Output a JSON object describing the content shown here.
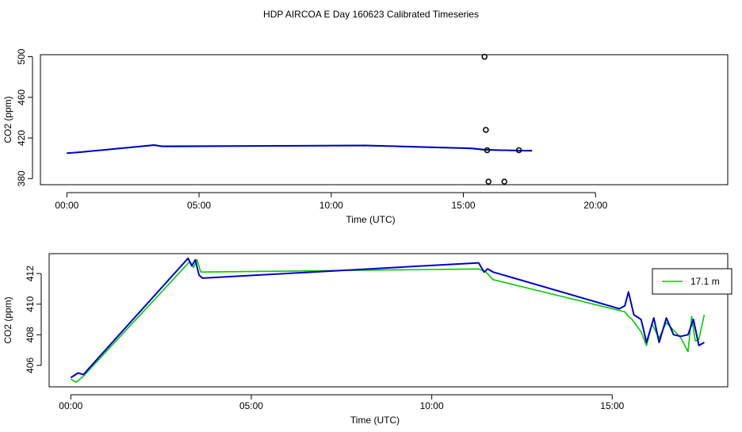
{
  "title": "HDP AIRCOA E  Day 160623  Calibrated Timeseries",
  "colors": {
    "green": "#00cc00",
    "blue": "#0000cc",
    "axis": "#000000",
    "background": "#ffffff"
  },
  "chart_data": [
    {
      "type": "line",
      "xlabel": "Time (UTC)",
      "ylabel": "CO2 (ppm)",
      "x_unit": "hours",
      "xlim": [
        -1,
        25
      ],
      "ylim": [
        374,
        502
      ],
      "x_ticks": [
        0,
        5,
        10,
        15,
        20
      ],
      "x_tick_labels": [
        "00:00",
        "05:00",
        "10:00",
        "15:00",
        "20:00"
      ],
      "y_ticks": [
        380,
        420,
        460,
        500
      ],
      "y_tick_labels": [
        "380",
        "420",
        "460",
        "500"
      ],
      "grid": false,
      "series": [
        {
          "color": "#00cc00",
          "x": [
            0.0,
            0.4,
            3.3,
            3.6,
            4.0,
            11.3,
            15.3,
            15.8,
            16.3,
            17.0,
            17.6
          ],
          "y": [
            405.2,
            405.6,
            412.8,
            412.1,
            412.2,
            412.5,
            409.5,
            408.0,
            408.0,
            407.5,
            407.8
          ]
        },
        {
          "color": "#0000cc",
          "x": [
            0.0,
            0.4,
            3.3,
            3.6,
            4.0,
            11.3,
            15.3,
            15.8,
            16.3,
            17.0,
            17.6
          ],
          "y": [
            405.1,
            405.8,
            413.0,
            411.8,
            411.7,
            412.6,
            409.8,
            408.5,
            408.0,
            407.6,
            407.4
          ]
        }
      ],
      "points": {
        "x": [
          15.8,
          15.85,
          15.9,
          15.95,
          16.55,
          17.1
        ],
        "y": [
          500,
          428,
          408,
          377,
          377,
          408
        ]
      }
    },
    {
      "type": "line",
      "xlabel": "Time (UTC)",
      "ylabel": "CO2 (ppm)",
      "x_unit": "hours",
      "xlim": [
        -0.6,
        18.2
      ],
      "ylim": [
        404.6,
        413.3
      ],
      "x_ticks": [
        0,
        5,
        10,
        15
      ],
      "x_tick_labels": [
        "00:00",
        "05:00",
        "10:00",
        "15:00"
      ],
      "y_ticks": [
        406,
        408,
        410,
        412
      ],
      "y_tick_labels": [
        "406",
        "408",
        "410",
        "412"
      ],
      "grid": false,
      "legend": {
        "position": "top-right",
        "entries": [
          {
            "label": "17.1 m",
            "color": "#00cc00"
          }
        ]
      },
      "series": [
        {
          "name": "17.1 m",
          "color": "#00cc00",
          "x": [
            0.0,
            0.15,
            0.35,
            3.3,
            3.4,
            3.5,
            3.6,
            11.3,
            11.5,
            11.7,
            15.35,
            15.45,
            15.55,
            15.8,
            15.95,
            16.1,
            16.3,
            16.5,
            16.7,
            16.9,
            17.1,
            17.2,
            17.3,
            17.4,
            17.55
          ],
          "y": [
            405.1,
            404.9,
            405.3,
            412.8,
            412.4,
            412.9,
            412.1,
            412.3,
            412.1,
            411.6,
            409.5,
            409.2,
            409.0,
            408.2,
            407.3,
            408.7,
            407.8,
            408.8,
            408.3,
            407.8,
            406.9,
            409.2,
            407.6,
            407.7,
            409.3
          ]
        },
        {
          "color": "#0000cc",
          "x": [
            0.0,
            0.2,
            0.35,
            0.5,
            3.25,
            3.35,
            3.45,
            3.55,
            3.65,
            11.3,
            11.45,
            11.55,
            11.7,
            15.2,
            15.35,
            15.45,
            15.6,
            15.8,
            15.95,
            16.15,
            16.3,
            16.5,
            16.7,
            16.9,
            17.1,
            17.25,
            17.4,
            17.55
          ],
          "y": [
            405.2,
            405.5,
            405.4,
            405.8,
            413.0,
            412.5,
            412.9,
            411.9,
            411.7,
            412.7,
            412.1,
            412.3,
            412.1,
            409.7,
            409.9,
            410.8,
            409.3,
            409.0,
            407.5,
            409.1,
            407.5,
            409.1,
            408.0,
            407.9,
            408.0,
            409.0,
            407.3,
            407.5
          ]
        }
      ]
    }
  ]
}
